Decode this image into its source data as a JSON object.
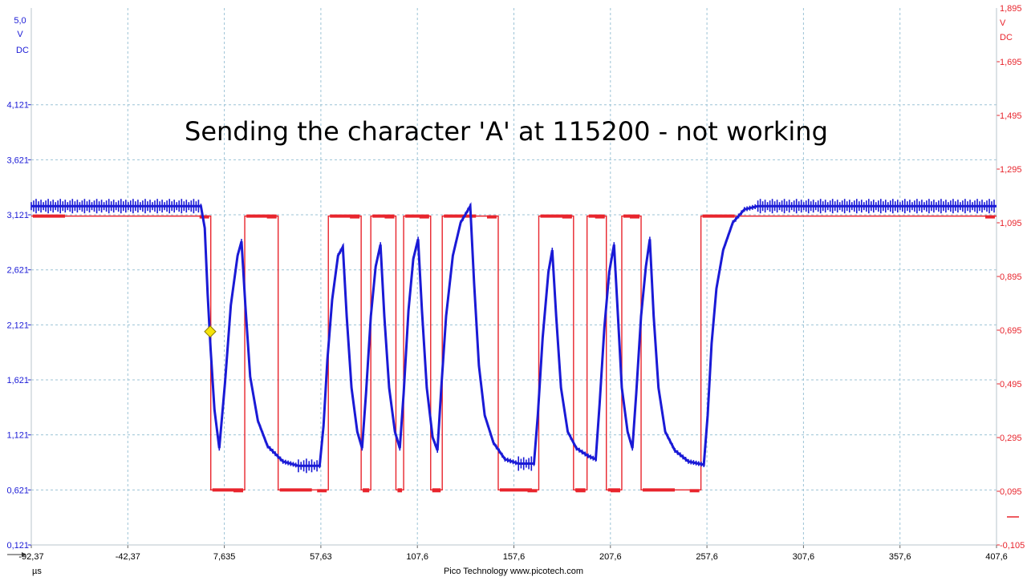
{
  "chart_data": {
    "type": "line",
    "title": "Sending the character 'A' at 115200 - not working",
    "footer": "Pico Technology   www.picotech.com",
    "grid": true,
    "x": {
      "unit": "µs",
      "range": [
        -92.37,
        407.6
      ],
      "ticks": [
        "-92,37",
        "-42,37",
        "7,635",
        "57,63",
        "107,6",
        "157,6",
        "207,6",
        "257,6",
        "307,6",
        "357,6",
        "407,6"
      ]
    },
    "y_left": {
      "unit_lines": [
        "5,0",
        "V",
        "DC"
      ],
      "range": [
        0.121,
        5.0
      ],
      "ticks": [
        {
          "v": 4.121,
          "label": "4,121"
        },
        {
          "v": 3.621,
          "label": "3,621"
        },
        {
          "v": 3.121,
          "label": "3,121"
        },
        {
          "v": 2.621,
          "label": "2,621"
        },
        {
          "v": 2.121,
          "label": "2,121"
        },
        {
          "v": 1.621,
          "label": "1,621"
        },
        {
          "v": 1.121,
          "label": "1,121"
        },
        {
          "v": 0.621,
          "label": "0,621"
        },
        {
          "v": 0.121,
          "label": "0,121"
        }
      ]
    },
    "y_right": {
      "unit_lines": [
        "1,895",
        "V",
        "DC"
      ],
      "range": [
        -0.105,
        1.895
      ],
      "ticks": [
        {
          "v": 1.695,
          "label": "1,695"
        },
        {
          "v": 1.495,
          "label": "1,495"
        },
        {
          "v": 1.295,
          "label": "1,295"
        },
        {
          "v": 1.095,
          "label": "1,095"
        },
        {
          "v": 0.895,
          "label": "0,895"
        },
        {
          "v": 0.695,
          "label": "0,695"
        },
        {
          "v": 0.495,
          "label": "0,495"
        },
        {
          "v": 0.295,
          "label": "0,295"
        },
        {
          "v": 0.095,
          "label": "0,095"
        },
        {
          "v": -0.105,
          "label": "-0,105"
        }
      ]
    },
    "trigger": {
      "t": 0.3,
      "v": 2.06
    },
    "series": [
      {
        "color": "#e8242c",
        "axis": "right",
        "high": 1.12,
        "low": 0.1,
        "levels": [
          {
            "t": -92.37,
            "level": 1
          },
          {
            "t": 0.6,
            "level": 0
          },
          {
            "t": 18.2,
            "level": 1
          },
          {
            "t": 35.5,
            "level": 0
          },
          {
            "t": 61.5,
            "level": 1
          },
          {
            "t": 78.5,
            "level": 0
          },
          {
            "t": 83.5,
            "level": 1
          },
          {
            "t": 96.5,
            "level": 0
          },
          {
            "t": 100.5,
            "level": 1
          },
          {
            "t": 114.5,
            "level": 0
          },
          {
            "t": 120.5,
            "level": 1
          },
          {
            "t": 149.5,
            "level": 0
          },
          {
            "t": 170.5,
            "level": 1
          },
          {
            "t": 188.5,
            "level": 0
          },
          {
            "t": 195.5,
            "level": 1
          },
          {
            "t": 205.5,
            "level": 0
          },
          {
            "t": 213.5,
            "level": 1
          },
          {
            "t": 223.5,
            "level": 0
          },
          {
            "t": 254.5,
            "level": 1
          },
          {
            "t": 407.6,
            "level": 1
          }
        ]
      },
      {
        "color": "#1a1ad6",
        "axis": "left",
        "high": 3.2,
        "low": 0.82,
        "points": [
          [
            -92.37,
            3.2
          ],
          [
            -4.5,
            3.2
          ],
          [
            -2.5,
            3.0
          ],
          [
            -1.0,
            2.4
          ],
          [
            0.5,
            1.9
          ],
          [
            2.5,
            1.35
          ],
          [
            5.0,
            1.0
          ],
          [
            8.0,
            1.6
          ],
          [
            11.0,
            2.3
          ],
          [
            14.5,
            2.75
          ],
          [
            16.5,
            2.88
          ],
          [
            18.5,
            2.3
          ],
          [
            21.0,
            1.65
          ],
          [
            25.0,
            1.25
          ],
          [
            30.0,
            1.02
          ],
          [
            38.0,
            0.88
          ],
          [
            46.0,
            0.84
          ],
          [
            57.0,
            0.84
          ],
          [
            59.0,
            1.2
          ],
          [
            61.0,
            1.8
          ],
          [
            63.5,
            2.35
          ],
          [
            66.5,
            2.75
          ],
          [
            69.0,
            2.83
          ],
          [
            71.0,
            2.2
          ],
          [
            73.5,
            1.55
          ],
          [
            76.5,
            1.15
          ],
          [
            79.0,
            1.0
          ],
          [
            81.0,
            1.5
          ],
          [
            83.5,
            2.2
          ],
          [
            86.0,
            2.65
          ],
          [
            88.5,
            2.85
          ],
          [
            90.5,
            2.2
          ],
          [
            93.0,
            1.55
          ],
          [
            96.0,
            1.15
          ],
          [
            98.5,
            1.0
          ],
          [
            100.5,
            1.5
          ],
          [
            103.0,
            2.25
          ],
          [
            105.5,
            2.72
          ],
          [
            108.0,
            2.9
          ],
          [
            110.0,
            2.25
          ],
          [
            112.5,
            1.55
          ],
          [
            115.5,
            1.1
          ],
          [
            118.0,
            0.98
          ],
          [
            120.0,
            1.55
          ],
          [
            122.5,
            2.2
          ],
          [
            126.0,
            2.75
          ],
          [
            130.0,
            3.05
          ],
          [
            135.0,
            3.2
          ],
          [
            137.0,
            2.5
          ],
          [
            139.5,
            1.75
          ],
          [
            142.5,
            1.3
          ],
          [
            147.0,
            1.05
          ],
          [
            153.0,
            0.9
          ],
          [
            160.0,
            0.86
          ],
          [
            168.0,
            0.86
          ],
          [
            170.0,
            1.3
          ],
          [
            172.5,
            2.0
          ],
          [
            175.5,
            2.6
          ],
          [
            177.5,
            2.8
          ],
          [
            179.5,
            2.2
          ],
          [
            182.0,
            1.55
          ],
          [
            185.5,
            1.15
          ],
          [
            190.0,
            1.0
          ],
          [
            196.0,
            0.93
          ],
          [
            200.0,
            0.9
          ],
          [
            202.0,
            1.4
          ],
          [
            204.5,
            2.1
          ],
          [
            207.0,
            2.6
          ],
          [
            209.5,
            2.85
          ],
          [
            211.5,
            2.2
          ],
          [
            213.5,
            1.55
          ],
          [
            216.5,
            1.15
          ],
          [
            219.0,
            1.0
          ],
          [
            221.0,
            1.5
          ],
          [
            223.5,
            2.2
          ],
          [
            226.0,
            2.65
          ],
          [
            228.0,
            2.9
          ],
          [
            230.0,
            2.2
          ],
          [
            232.5,
            1.55
          ],
          [
            236.0,
            1.15
          ],
          [
            241.0,
            0.98
          ],
          [
            248.0,
            0.88
          ],
          [
            256.0,
            0.85
          ],
          [
            258.0,
            1.3
          ],
          [
            260.0,
            1.95
          ],
          [
            262.5,
            2.45
          ],
          [
            266.0,
            2.8
          ],
          [
            271.0,
            3.05
          ],
          [
            277.0,
            3.17
          ],
          [
            284.0,
            3.2
          ],
          [
            407.6,
            3.2
          ]
        ]
      }
    ]
  }
}
